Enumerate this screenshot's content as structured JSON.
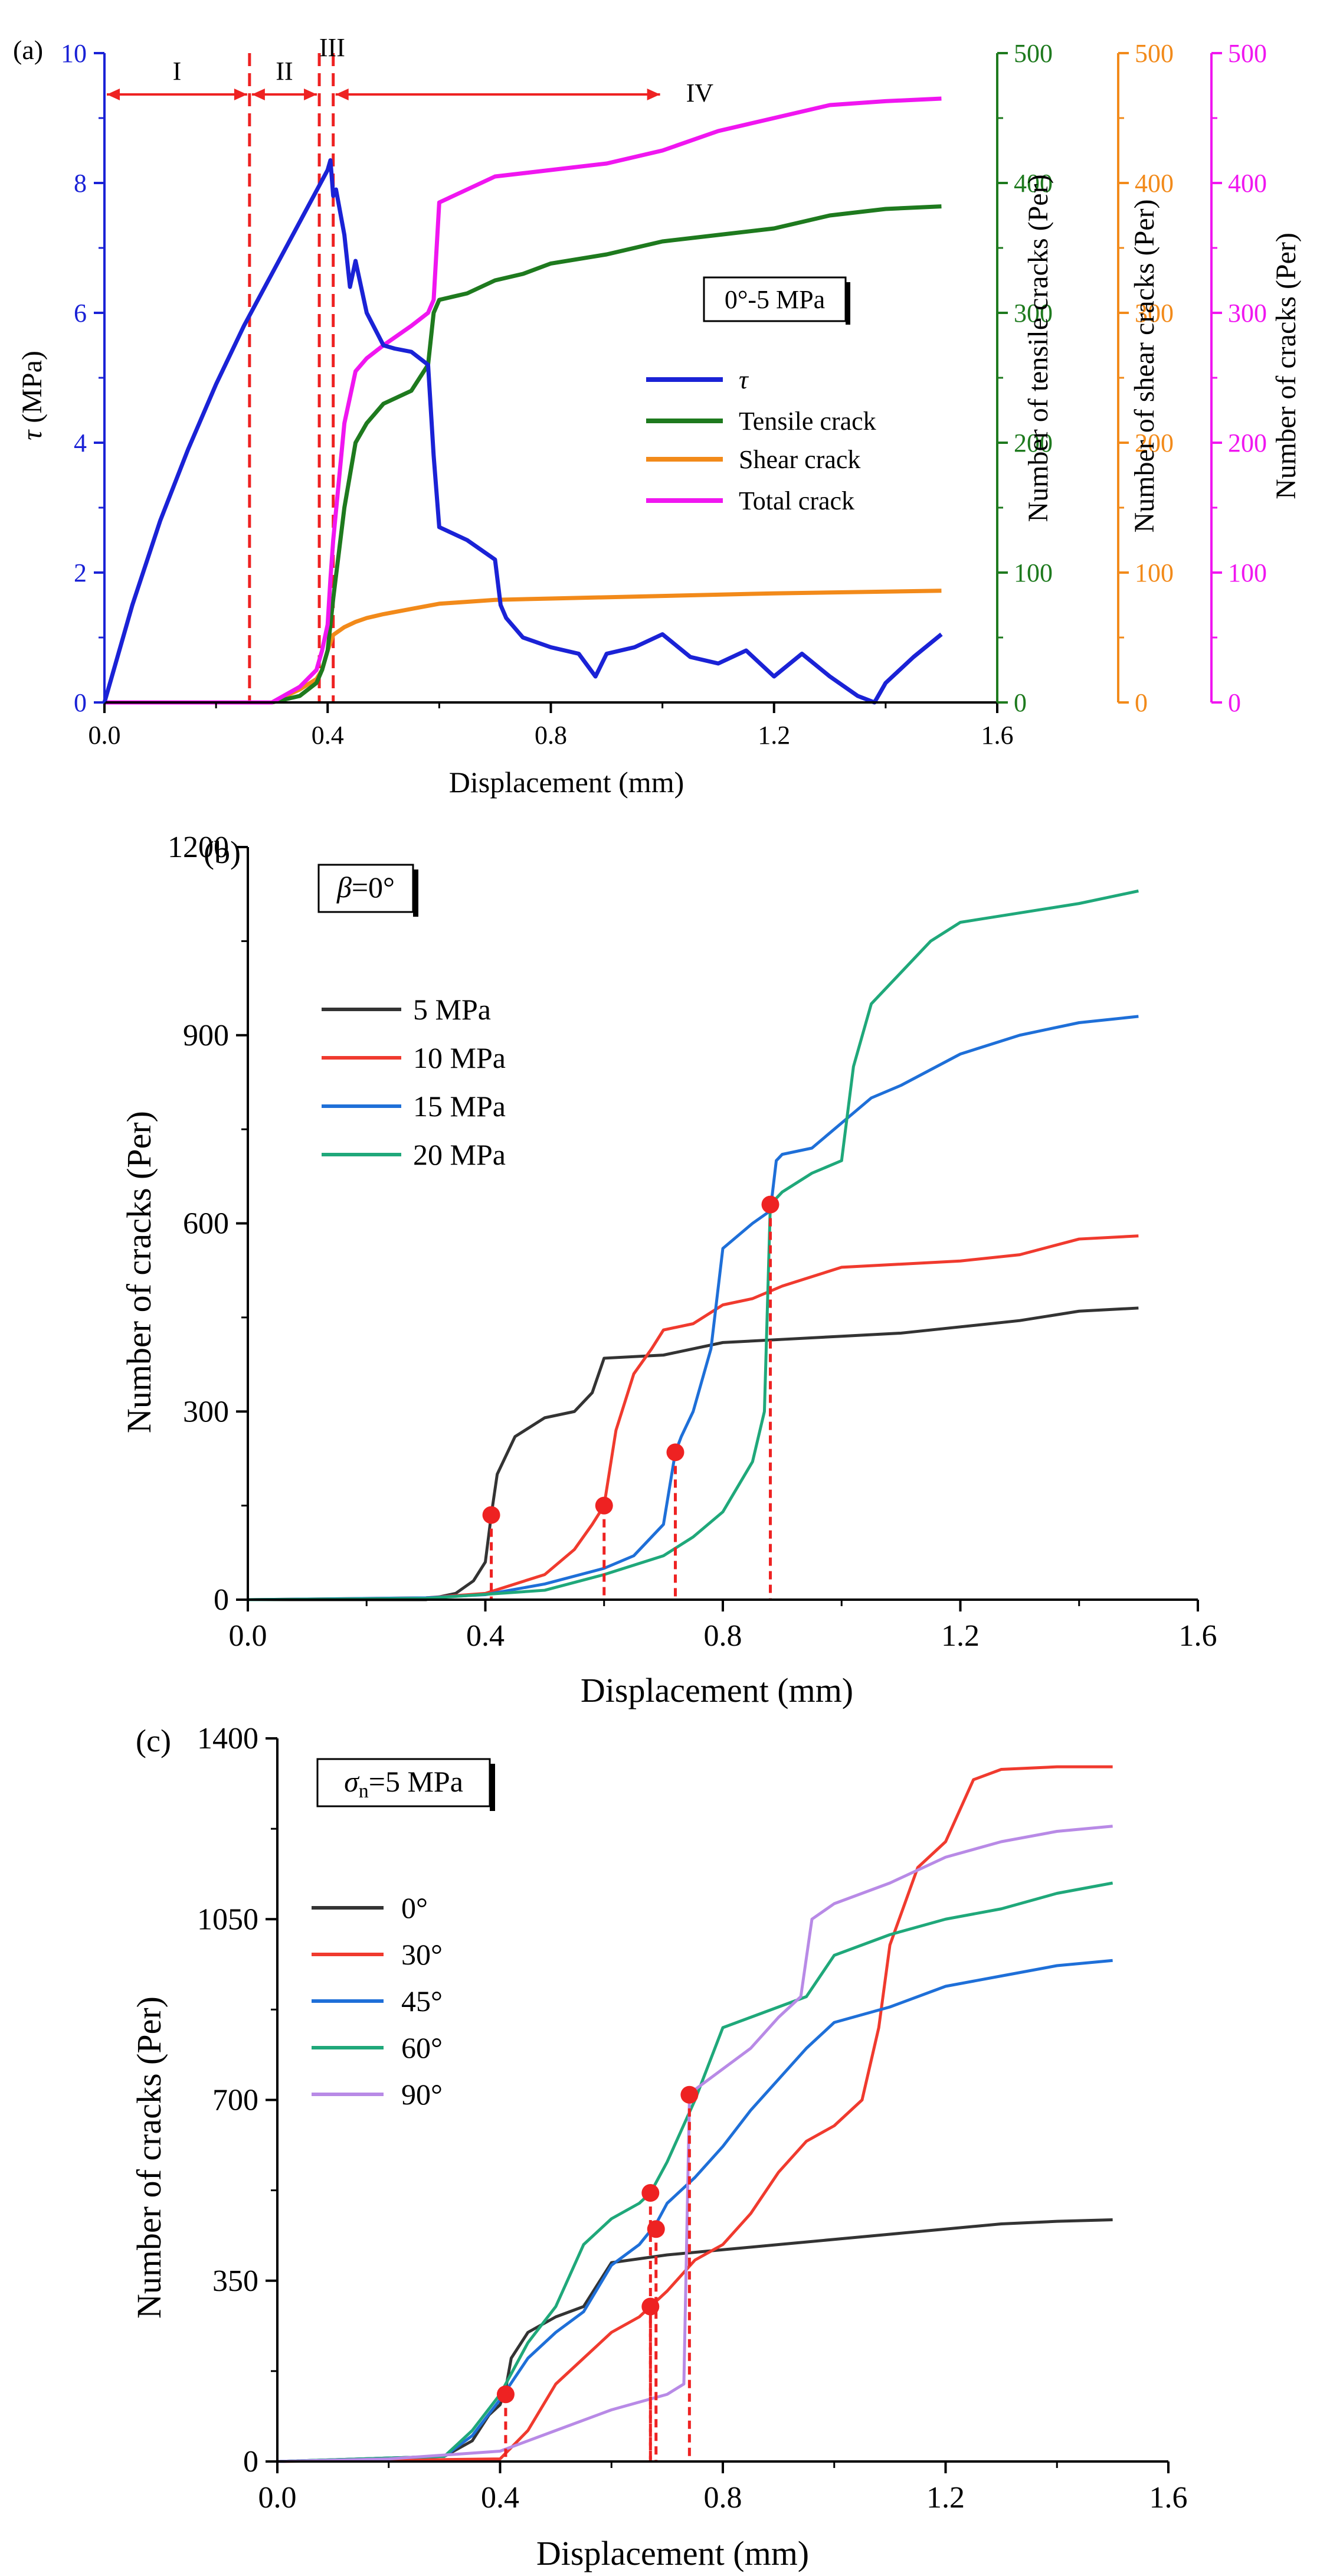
{
  "colors": {
    "tau": "#1a22d6",
    "tensile": "#1e7a1e",
    "shear": "#f28a1a",
    "total": "#f016f0",
    "red": "#ee2222",
    "p5": "#333333",
    "p10": "#f03a2e",
    "p15": "#1e6fd8",
    "p20": "#1fa87a",
    "a90": "#b88ae6"
  },
  "chart_data": [
    {
      "id": "a",
      "type": "line",
      "panel_label": "(a)",
      "xlabel": "Displacement (mm)",
      "xlim": [
        0,
        1.6
      ],
      "x_ticks": [
        "0.0",
        "0.4",
        "0.8",
        "1.2",
        "1.6"
      ],
      "y_axes": [
        {
          "label": "τ (MPa)",
          "label_symbol": "τ",
          "label_unit": " (MPa)",
          "ylim": [
            0,
            10
          ],
          "ticks": [
            "0",
            "2",
            "4",
            "6",
            "8",
            "10"
          ]
        },
        {
          "label": "Number of  tensile cracks (Per)",
          "ylim": [
            0,
            500
          ],
          "ticks": [
            "0",
            "100",
            "200",
            "300",
            "400",
            "500"
          ]
        },
        {
          "label": "Number of shear cracks (Per)",
          "ylim": [
            0,
            500
          ],
          "ticks": [
            "0",
            "100",
            "200",
            "300",
            "400",
            "500"
          ]
        },
        {
          "label": "Number of cracks (Per)",
          "ylim": [
            0,
            500
          ],
          "ticks": [
            "0",
            "100",
            "200",
            "300",
            "400",
            "500"
          ]
        }
      ],
      "annotation_box": "0°-5 MPa",
      "stage_labels": [
        "I",
        "II",
        "III",
        "IV"
      ],
      "stage_boundaries": [
        0.26,
        0.385,
        0.41
      ],
      "series": [
        {
          "name": "τ",
          "axis": 0,
          "x": [
            0,
            0.05,
            0.1,
            0.15,
            0.2,
            0.25,
            0.3,
            0.35,
            0.4,
            0.405,
            0.41,
            0.415,
            0.43,
            0.44,
            0.45,
            0.47,
            0.5,
            0.52,
            0.55,
            0.58,
            0.59,
            0.6,
            0.65,
            0.7,
            0.71,
            0.72,
            0.75,
            0.8,
            0.85,
            0.88,
            0.9,
            0.95,
            1.0,
            1.05,
            1.1,
            1.15,
            1.2,
            1.25,
            1.3,
            1.35,
            1.38,
            1.4,
            1.45,
            1.5
          ],
          "y": [
            0,
            1.5,
            2.8,
            3.9,
            4.9,
            5.8,
            6.6,
            7.4,
            8.2,
            8.35,
            7.8,
            7.9,
            7.2,
            6.4,
            6.8,
            6.0,
            5.5,
            5.45,
            5.4,
            5.2,
            3.8,
            2.7,
            2.5,
            2.2,
            1.5,
            1.3,
            1.0,
            0.85,
            0.75,
            0.4,
            0.75,
            0.85,
            1.05,
            0.7,
            0.6,
            0.8,
            0.4,
            0.75,
            0.4,
            0.1,
            0.0,
            0.3,
            0.7,
            1.05
          ]
        },
        {
          "name": "Tensile crack",
          "axis": 1,
          "x": [
            0,
            0.3,
            0.35,
            0.38,
            0.39,
            0.4,
            0.41,
            0.43,
            0.45,
            0.47,
            0.5,
            0.55,
            0.58,
            0.59,
            0.6,
            0.65,
            0.7,
            0.75,
            0.8,
            0.9,
            1.0,
            1.1,
            1.2,
            1.3,
            1.4,
            1.5
          ],
          "y": [
            0,
            0,
            5,
            15,
            25,
            40,
            80,
            150,
            200,
            215,
            230,
            240,
            260,
            300,
            310,
            315,
            325,
            330,
            338,
            345,
            355,
            360,
            365,
            375,
            380,
            382
          ]
        },
        {
          "name": "Shear crack",
          "axis": 2,
          "x": [
            0,
            0.3,
            0.35,
            0.38,
            0.39,
            0.4,
            0.41,
            0.43,
            0.45,
            0.47,
            0.5,
            0.55,
            0.6,
            0.7,
            0.8,
            1.0,
            1.2,
            1.5
          ],
          "y": [
            0,
            0,
            10,
            18,
            25,
            40,
            52,
            58,
            62,
            65,
            68,
            72,
            76,
            79,
            80,
            82,
            84,
            86
          ]
        },
        {
          "name": "Total crack",
          "axis": 3,
          "x": [
            0,
            0.3,
            0.35,
            0.38,
            0.39,
            0.4,
            0.405,
            0.41,
            0.43,
            0.45,
            0.47,
            0.5,
            0.55,
            0.58,
            0.59,
            0.6,
            0.65,
            0.7,
            0.8,
            0.9,
            1.0,
            1.1,
            1.2,
            1.3,
            1.4,
            1.5
          ],
          "y": [
            0,
            0,
            12,
            25,
            40,
            60,
            95,
            125,
            215,
            255,
            265,
            275,
            290,
            300,
            310,
            385,
            395,
            405,
            410,
            415,
            425,
            440,
            450,
            460,
            463,
            465
          ]
        }
      ]
    },
    {
      "id": "b",
      "type": "line",
      "panel_label": "(b)",
      "annotation_symbol": "β",
      "annotation_rest": "=0°",
      "xlabel": "Displacement (mm)",
      "ylabel": "Number of cracks (Per)",
      "xlim": [
        0,
        1.6
      ],
      "ylim": [
        0,
        1200
      ],
      "x_ticks": [
        "0.0",
        "0.4",
        "0.8",
        "1.2",
        "1.6"
      ],
      "y_ticks": [
        "0",
        "300",
        "600",
        "900",
        "1200"
      ],
      "series": [
        {
          "name": "5 MPa",
          "x": [
            0,
            0.3,
            0.35,
            0.38,
            0.4,
            0.41,
            0.42,
            0.45,
            0.5,
            0.55,
            0.58,
            0.6,
            0.7,
            0.8,
            0.9,
            1.0,
            1.1,
            1.2,
            1.3,
            1.4,
            1.5
          ],
          "y": [
            0,
            0,
            10,
            30,
            60,
            135,
            200,
            260,
            290,
            300,
            330,
            385,
            390,
            410,
            415,
            420,
            425,
            435,
            445,
            460,
            465
          ]
        },
        {
          "name": "10 MPa",
          "x": [
            0,
            0.3,
            0.4,
            0.5,
            0.55,
            0.58,
            0.6,
            0.62,
            0.65,
            0.68,
            0.7,
            0.75,
            0.8,
            0.85,
            0.9,
            1.0,
            1.2,
            1.3,
            1.4,
            1.5
          ],
          "y": [
            0,
            3,
            10,
            40,
            80,
            120,
            150,
            270,
            360,
            400,
            430,
            440,
            470,
            480,
            500,
            530,
            540,
            550,
            575,
            580
          ]
        },
        {
          "name": "15 MPa",
          "x": [
            0,
            0.3,
            0.4,
            0.5,
            0.6,
            0.65,
            0.7,
            0.72,
            0.73,
            0.75,
            0.78,
            0.8,
            0.85,
            0.88,
            0.89,
            0.9,
            0.95,
            1.0,
            1.05,
            1.1,
            1.2,
            1.3,
            1.4,
            1.5
          ],
          "y": [
            0,
            3,
            8,
            25,
            50,
            70,
            120,
            235,
            260,
            300,
            400,
            560,
            600,
            620,
            700,
            710,
            720,
            760,
            800,
            820,
            870,
            900,
            920,
            930
          ]
        },
        {
          "name": "20 MPa",
          "x": [
            0,
            0.3,
            0.5,
            0.6,
            0.7,
            0.75,
            0.8,
            0.85,
            0.87,
            0.88,
            0.89,
            0.9,
            0.95,
            1.0,
            1.02,
            1.05,
            1.08,
            1.1,
            1.15,
            1.2,
            1.3,
            1.4,
            1.5
          ],
          "y": [
            0,
            2,
            15,
            40,
            70,
            100,
            140,
            220,
            300,
            630,
            640,
            650,
            680,
            700,
            850,
            950,
            980,
            1000,
            1050,
            1080,
            1095,
            1110,
            1130
          ]
        }
      ],
      "markers": [
        {
          "series": "5 MPa",
          "x": 0.41,
          "y": 135
        },
        {
          "series": "10 MPa",
          "x": 0.6,
          "y": 150
        },
        {
          "series": "15 MPa",
          "x": 0.72,
          "y": 235
        },
        {
          "series": "20 MPa",
          "x": 0.88,
          "y": 630
        }
      ]
    },
    {
      "id": "c",
      "type": "line",
      "panel_label": "(c)",
      "annotation_symbol": "σ",
      "annotation_sub": "n",
      "annotation_rest": "=5 MPa",
      "xlabel": "Displacement (mm)",
      "ylabel": "Number of cracks (Per)",
      "xlim": [
        0,
        1.6
      ],
      "ylim": [
        0,
        1400
      ],
      "x_ticks": [
        "0.0",
        "0.4",
        "0.8",
        "1.2",
        "1.6"
      ],
      "y_ticks": [
        "0",
        "350",
        "700",
        "1050",
        "1400"
      ],
      "series": [
        {
          "name": "0°",
          "x": [
            0,
            0.3,
            0.35,
            0.38,
            0.4,
            0.41,
            0.42,
            0.45,
            0.5,
            0.55,
            0.6,
            0.7,
            0.8,
            0.9,
            1.0,
            1.1,
            1.2,
            1.3,
            1.4,
            1.5
          ],
          "y": [
            0,
            10,
            40,
            90,
            110,
            140,
            200,
            250,
            280,
            300,
            385,
            400,
            410,
            420,
            430,
            440,
            450,
            460,
            465,
            468
          ]
        },
        {
          "name": "30°",
          "x": [
            0,
            0.4,
            0.45,
            0.5,
            0.55,
            0.6,
            0.65,
            0.67,
            0.7,
            0.75,
            0.8,
            0.85,
            0.9,
            0.95,
            1.0,
            1.05,
            1.08,
            1.1,
            1.15,
            1.2,
            1.25,
            1.3,
            1.4,
            1.5
          ],
          "y": [
            0,
            5,
            60,
            150,
            200,
            250,
            280,
            300,
            330,
            390,
            420,
            480,
            560,
            620,
            650,
            700,
            840,
            1000,
            1150,
            1200,
            1320,
            1340,
            1345,
            1345
          ]
        },
        {
          "name": "45°",
          "x": [
            0,
            0.3,
            0.35,
            0.4,
            0.45,
            0.5,
            0.55,
            0.6,
            0.65,
            0.68,
            0.7,
            0.75,
            0.8,
            0.85,
            0.9,
            0.95,
            1.0,
            1.1,
            1.2,
            1.3,
            1.4,
            1.5
          ],
          "y": [
            0,
            10,
            50,
            120,
            200,
            250,
            290,
            380,
            420,
            460,
            500,
            550,
            610,
            680,
            740,
            800,
            850,
            880,
            920,
            940,
            960,
            970
          ]
        },
        {
          "name": "60°",
          "x": [
            0,
            0.3,
            0.35,
            0.4,
            0.45,
            0.5,
            0.55,
            0.6,
            0.65,
            0.67,
            0.7,
            0.75,
            0.8,
            0.85,
            0.9,
            0.95,
            1.0,
            1.05,
            1.1,
            1.2,
            1.3,
            1.4,
            1.5
          ],
          "y": [
            0,
            10,
            60,
            130,
            230,
            300,
            420,
            470,
            500,
            520,
            580,
            700,
            840,
            860,
            880,
            900,
            980,
            1000,
            1020,
            1050,
            1070,
            1100,
            1120
          ]
        },
        {
          "name": "90°",
          "x": [
            0,
            0.2,
            0.4,
            0.5,
            0.6,
            0.7,
            0.73,
            0.74,
            0.75,
            0.8,
            0.85,
            0.9,
            0.94,
            0.96,
            1.0,
            1.05,
            1.1,
            1.2,
            1.3,
            1.4,
            1.5
          ],
          "y": [
            0,
            5,
            20,
            60,
            100,
            130,
            150,
            700,
            720,
            760,
            800,
            860,
            900,
            1050,
            1080,
            1100,
            1120,
            1170,
            1200,
            1220,
            1230
          ]
        }
      ],
      "markers": [
        {
          "series": "0°",
          "x": 0.41,
          "y": 130
        },
        {
          "series": "30°",
          "x": 0.67,
          "y": 300
        },
        {
          "series": "45°",
          "x": 0.68,
          "y": 450
        },
        {
          "series": "60°",
          "x": 0.67,
          "y": 520
        },
        {
          "series": "90°",
          "x": 0.74,
          "y": 710
        }
      ]
    }
  ]
}
